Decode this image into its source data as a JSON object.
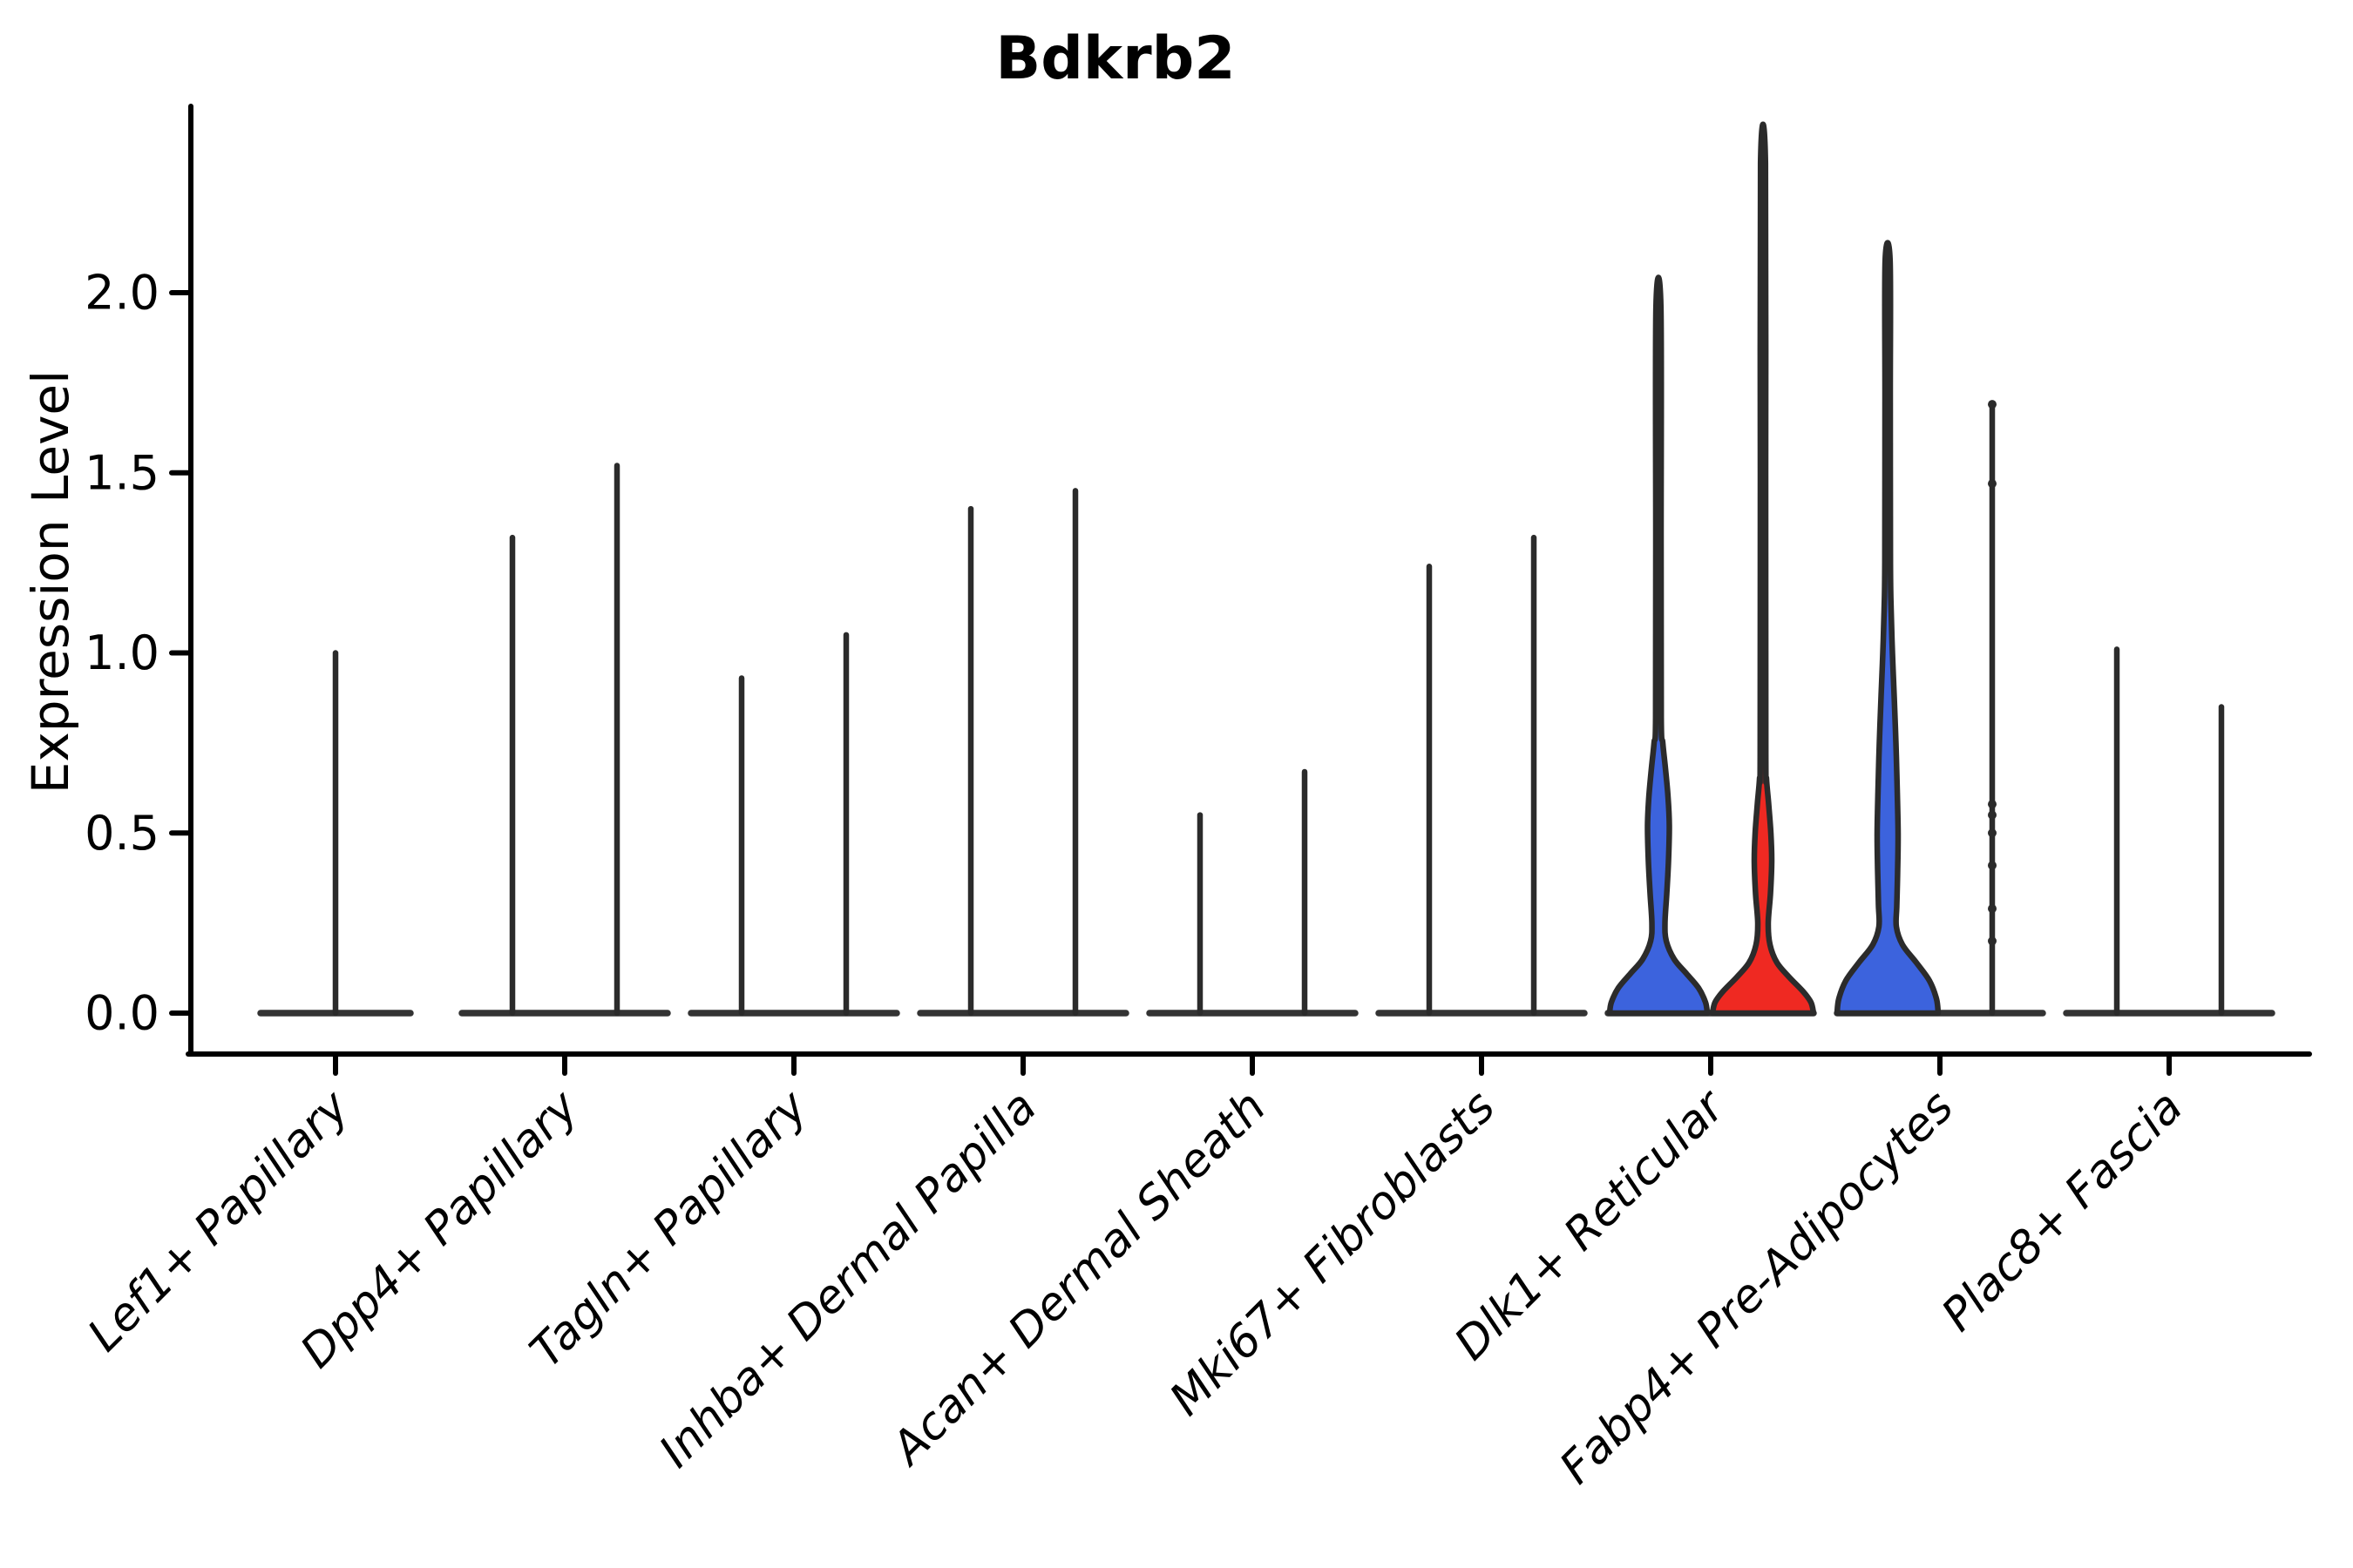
{
  "title": "Bdkrb2",
  "ylabel": "Expression Level",
  "colors": {
    "blue_fill": "#3C63DD",
    "red_fill": "#EF2922",
    "outline": "#2B2B2B",
    "flat_line": "#333333",
    "axis": "#000000",
    "background": "#ffffff"
  },
  "chart_data": {
    "type": "violin",
    "title": "Bdkrb2",
    "xlabel": "",
    "ylabel": "Expression Level",
    "ylim": [
      0,
      2.52
    ],
    "yticks": [
      0.0,
      0.5,
      1.0,
      1.5,
      2.0
    ],
    "ytick_labels": [
      "0.0",
      "0.5",
      "1.0",
      "1.5",
      "2.0"
    ],
    "grid": false,
    "legend": "none",
    "categories": [
      "Lef1+ Papillary",
      "Dpp4+ Papillary",
      "Tagln+ Papillary",
      "Inhba+ Dermal Papilla",
      "Acan+ Dermal Sheath",
      "Mki67+ Fibroblasts",
      "Dlk1+ Reticular",
      "Fabp4+ Pre-Adipocytes",
      "Plac8+ Fascia"
    ],
    "note": "Each category holds two narrow violins (left/right); most are collapsed flat at 0 with a single thin max-expression spike. Only Dlk1+ Reticular (blue + red) and Fabp4+ Pre-Adipocytes (blue) show filled violin bodies.",
    "violins": [
      {
        "cat": 0,
        "pos": "center",
        "style": "spike",
        "max": 1.0
      },
      {
        "cat": 1,
        "pos": "left",
        "style": "spike",
        "max": 1.32
      },
      {
        "cat": 1,
        "pos": "right",
        "style": "spike",
        "max": 1.52
      },
      {
        "cat": 2,
        "pos": "left",
        "style": "spike",
        "max": 0.93
      },
      {
        "cat": 2,
        "pos": "right",
        "style": "spike",
        "max": 1.05
      },
      {
        "cat": 3,
        "pos": "left",
        "style": "spike",
        "max": 1.4
      },
      {
        "cat": 3,
        "pos": "right",
        "style": "spike",
        "max": 1.45
      },
      {
        "cat": 4,
        "pos": "left",
        "style": "spike",
        "max": 0.55
      },
      {
        "cat": 4,
        "pos": "right",
        "style": "spike",
        "max": 0.67
      },
      {
        "cat": 5,
        "pos": "left",
        "style": "spike",
        "max": 1.24
      },
      {
        "cat": 5,
        "pos": "right",
        "style": "spike",
        "max": 1.32
      },
      {
        "cat": 6,
        "pos": "left",
        "style": "body",
        "color": "blue",
        "max": 1.96,
        "profile": [
          [
            0,
            56
          ],
          [
            0.03,
            54
          ],
          [
            0.07,
            46
          ],
          [
            0.11,
            32
          ],
          [
            0.15,
            18
          ],
          [
            0.2,
            9
          ],
          [
            0.25,
            7.5
          ],
          [
            0.33,
            9.5
          ],
          [
            0.42,
            11.5
          ],
          [
            0.52,
            12.5
          ],
          [
            0.6,
            11
          ],
          [
            0.68,
            8
          ],
          [
            0.75,
            5
          ],
          [
            0.82,
            3.2
          ],
          [
            1.3,
            3.0
          ],
          [
            1.96,
            2.8
          ]
        ]
      },
      {
        "cat": 6,
        "pos": "right",
        "style": "body",
        "color": "red",
        "max": 2.36,
        "profile": [
          [
            0,
            58
          ],
          [
            0.03,
            55
          ],
          [
            0.06,
            46
          ],
          [
            0.1,
            30
          ],
          [
            0.14,
            16
          ],
          [
            0.19,
            8
          ],
          [
            0.25,
            6
          ],
          [
            0.33,
            8.5
          ],
          [
            0.42,
            10
          ],
          [
            0.5,
            9
          ],
          [
            0.58,
            6.5
          ],
          [
            0.65,
            4
          ],
          [
            0.72,
            3.2
          ],
          [
            1.5,
            3.0
          ],
          [
            2.36,
            2.8
          ]
        ]
      },
      {
        "cat": 7,
        "pos": "left",
        "style": "body",
        "color": "blue",
        "max": 2.09,
        "profile": [
          [
            0,
            58
          ],
          [
            0.04,
            56
          ],
          [
            0.09,
            48
          ],
          [
            0.14,
            33
          ],
          [
            0.19,
            17
          ],
          [
            0.24,
            10
          ],
          [
            0.3,
            10.5
          ],
          [
            0.4,
            11.5
          ],
          [
            0.5,
            12
          ],
          [
            0.62,
            11
          ],
          [
            0.75,
            9.5
          ],
          [
            0.88,
            7.5
          ],
          [
            1.0,
            5.5
          ],
          [
            1.12,
            4
          ],
          [
            1.25,
            3.2
          ],
          [
            1.7,
            3.0
          ],
          [
            2.09,
            2.8
          ]
        ]
      },
      {
        "cat": 7,
        "pos": "right",
        "style": "spike",
        "max": 1.69,
        "dots": [
          1.69,
          1.47,
          0.58,
          0.55,
          0.5,
          0.41,
          0.29,
          0.2
        ]
      },
      {
        "cat": 8,
        "pos": "left",
        "style": "spike",
        "max": 1.01
      },
      {
        "cat": 8,
        "pos": "right",
        "style": "spike",
        "max": 0.85
      }
    ]
  }
}
